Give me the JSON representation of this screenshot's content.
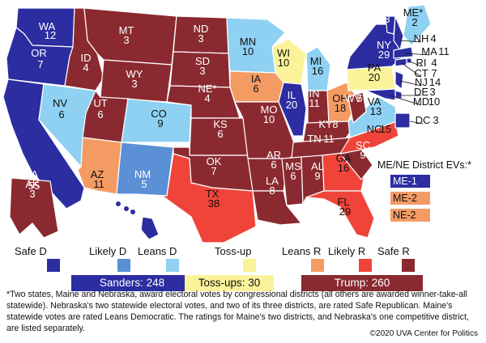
{
  "colors": {
    "safe_d": "#2c2da1",
    "likely_d": "#5b8fd6",
    "leans_d": "#8ed1f2",
    "tossup": "#fbf39a",
    "leans_r": "#f49b64",
    "likely_r": "#f0443a",
    "safe_r": "#8a2a30"
  },
  "states": [
    {
      "abbr": "WA",
      "ev": "12",
      "rating": "safe_d"
    },
    {
      "abbr": "OR",
      "ev": "7",
      "rating": "safe_d"
    },
    {
      "abbr": "CA",
      "ev": "55",
      "rating": "safe_d"
    },
    {
      "abbr": "NV",
      "ev": "6",
      "rating": "leans_d"
    },
    {
      "abbr": "ID",
      "ev": "4",
      "rating": "safe_r"
    },
    {
      "abbr": "MT",
      "ev": "3",
      "rating": "safe_r"
    },
    {
      "abbr": "WY",
      "ev": "3",
      "rating": "safe_r"
    },
    {
      "abbr": "UT",
      "ev": "6",
      "rating": "safe_r"
    },
    {
      "abbr": "AZ",
      "ev": "11",
      "rating": "leans_r"
    },
    {
      "abbr": "CO",
      "ev": "9",
      "rating": "leans_d"
    },
    {
      "abbr": "NM",
      "ev": "5",
      "rating": "likely_d"
    },
    {
      "abbr": "ND",
      "ev": "3",
      "rating": "safe_r"
    },
    {
      "abbr": "SD",
      "ev": "3",
      "rating": "safe_r"
    },
    {
      "abbr": "NE*",
      "ev": "4",
      "rating": "safe_r"
    },
    {
      "abbr": "KS",
      "ev": "6",
      "rating": "safe_r"
    },
    {
      "abbr": "OK",
      "ev": "7",
      "rating": "safe_r"
    },
    {
      "abbr": "TX",
      "ev": "38",
      "rating": "likely_r"
    },
    {
      "abbr": "MN",
      "ev": "10",
      "rating": "leans_d"
    },
    {
      "abbr": "IA",
      "ev": "6",
      "rating": "leans_r"
    },
    {
      "abbr": "MO",
      "ev": "10",
      "rating": "safe_r"
    },
    {
      "abbr": "AR",
      "ev": "6",
      "rating": "safe_r"
    },
    {
      "abbr": "LA",
      "ev": "8",
      "rating": "safe_r"
    },
    {
      "abbr": "WI",
      "ev": "10",
      "rating": "tossup"
    },
    {
      "abbr": "IL",
      "ev": "20",
      "rating": "safe_d"
    },
    {
      "abbr": "MI",
      "ev": "16",
      "rating": "leans_d"
    },
    {
      "abbr": "IN",
      "ev": "11",
      "rating": "safe_r"
    },
    {
      "abbr": "OH",
      "ev": "18",
      "rating": "leans_r"
    },
    {
      "abbr": "KY",
      "ev": "8",
      "rating": "safe_r"
    },
    {
      "abbr": "TN",
      "ev": "11",
      "rating": "safe_r"
    },
    {
      "abbr": "MS",
      "ev": "6",
      "rating": "safe_r"
    },
    {
      "abbr": "AL",
      "ev": "9",
      "rating": "safe_r"
    },
    {
      "abbr": "GA",
      "ev": "16",
      "rating": "likely_r"
    },
    {
      "abbr": "FL",
      "ev": "29",
      "rating": "likely_r"
    },
    {
      "abbr": "SC",
      "ev": "9",
      "rating": "safe_r"
    },
    {
      "abbr": "NC",
      "ev": "15",
      "rating": "likely_r"
    },
    {
      "abbr": "VA",
      "ev": "13",
      "rating": "leans_d"
    },
    {
      "abbr": "WV",
      "ev": "5",
      "rating": "safe_r"
    },
    {
      "abbr": "PA",
      "ev": "20",
      "rating": "tossup"
    },
    {
      "abbr": "NY",
      "ev": "29",
      "rating": "safe_d"
    },
    {
      "abbr": "VT",
      "ev": "3",
      "rating": "safe_d"
    },
    {
      "abbr": "ME*",
      "ev": "2",
      "rating": "leans_d"
    },
    {
      "abbr": "NH",
      "ev": "4",
      "rating": "safe_d"
    },
    {
      "abbr": "MA",
      "ev": "11",
      "rating": "safe_d"
    },
    {
      "abbr": "RI",
      "ev": "4",
      "rating": "safe_d"
    },
    {
      "abbr": "CT",
      "ev": "7",
      "rating": "safe_d"
    },
    {
      "abbr": "NJ",
      "ev": "14",
      "rating": "safe_d"
    },
    {
      "abbr": "DE",
      "ev": "3",
      "rating": "safe_d"
    },
    {
      "abbr": "MD",
      "ev": "10",
      "rating": "safe_d"
    },
    {
      "abbr": "DC",
      "ev": "3",
      "rating": "safe_d"
    },
    {
      "abbr": "AK",
      "ev": "3",
      "rating": "safe_r"
    },
    {
      "abbr": "HI",
      "ev": "4",
      "rating": "safe_d"
    }
  ],
  "inset": {
    "title": "ME/NE District EVs:*",
    "items": [
      {
        "label": "ME-1",
        "rating": "safe_d"
      },
      {
        "label": "ME-2",
        "rating": "leans_r"
      },
      {
        "label": "NE-2",
        "rating": "leans_r"
      }
    ]
  },
  "legend": {
    "categories": [
      {
        "label": "Safe D",
        "rating": "safe_d"
      },
      {
        "label": "Likely D",
        "rating": "likely_d"
      },
      {
        "label": "Leans D",
        "rating": "leans_d"
      },
      {
        "label": "Toss-up",
        "rating": "tossup"
      },
      {
        "label": "Leans R",
        "rating": "leans_r"
      },
      {
        "label": "Likely R",
        "rating": "likely_r"
      },
      {
        "label": "Safe R",
        "rating": "safe_r"
      }
    ],
    "totals": [
      {
        "label": "Sanders: 248",
        "rating": "safe_d"
      },
      {
        "label": "Toss-ups: 30",
        "rating": "tossup"
      },
      {
        "label": "Trump: 260",
        "rating": "safe_r"
      }
    ]
  },
  "footnote": "*Two states, Maine and Nebraska, award electoral votes by congressional districts (all others are awarded winner-take-all statewide). Nebraska's two statewide electoral votes, and two of its three districts, are rated Safe Republican. Maine's statewide votes are rated Leans Democratic. The ratings for Maine's two districts, and Nebraska's one competitive district, are listed separately.",
  "copyright": "©2020 UVA Center for Politics"
}
